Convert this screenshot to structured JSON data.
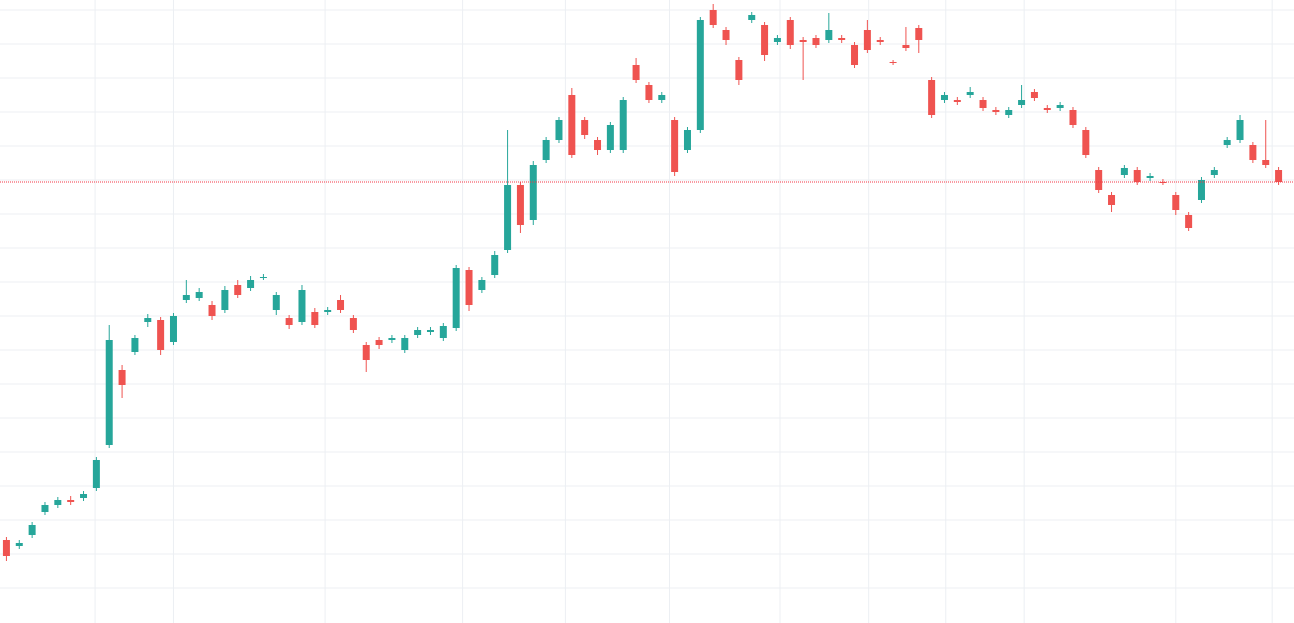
{
  "chart_data": {
    "type": "candlestick",
    "x": [
      0,
      1,
      2,
      3,
      4,
      5,
      6,
      7,
      8,
      9,
      10,
      11,
      12,
      13,
      14,
      15,
      16,
      17,
      18,
      19,
      20,
      21,
      22,
      23,
      24,
      25,
      26,
      27,
      28,
      29,
      30,
      31,
      32,
      33,
      34,
      35,
      36,
      37,
      38,
      39,
      40,
      41,
      42,
      43,
      44,
      45,
      46,
      47,
      48,
      49,
      50,
      51,
      52,
      53,
      54,
      55,
      56,
      57,
      58,
      59,
      60,
      61,
      62,
      63,
      64,
      65,
      66,
      67,
      68,
      69,
      70,
      71,
      72,
      73,
      74,
      75,
      76,
      77,
      78,
      79,
      80,
      81,
      82,
      83,
      84,
      85,
      86,
      87,
      88,
      89,
      90,
      91,
      92,
      93,
      94,
      95,
      96,
      97,
      98,
      99
    ],
    "open": [
      83,
      77,
      88,
      111,
      118,
      123,
      125,
      135,
      178,
      253,
      271,
      301,
      303,
      281,
      323,
      325,
      318,
      313,
      338,
      335,
      345,
      313,
      305,
      301,
      311,
      311,
      323,
      305,
      278,
      283,
      283,
      273,
      288,
      291,
      285,
      295,
      353,
      333,
      348,
      373,
      438,
      403,
      463,
      483,
      528,
      503,
      483,
      473,
      473,
      558,
      538,
      523,
      503,
      473,
      493,
      613,
      593,
      563,
      603,
      598,
      581,
      603,
      583,
      585,
      583,
      585,
      578,
      593,
      583,
      561,
      578,
      595,
      543,
      523,
      523,
      528,
      523,
      513,
      508,
      518,
      531,
      515,
      515,
      513,
      493,
      453,
      428,
      448,
      453,
      445,
      441,
      428,
      408,
      423,
      448,
      478,
      483,
      478,
      463,
      453
    ],
    "high": [
      86,
      83,
      101,
      121,
      126,
      127,
      132,
      166,
      298,
      258,
      288,
      309,
      306,
      310,
      343,
      335,
      322,
      337,
      343,
      347,
      349,
      331,
      308,
      338,
      315,
      316,
      328,
      308,
      281,
      286,
      288,
      288,
      296,
      296,
      300,
      358,
      356,
      346,
      372,
      493,
      441,
      462,
      486,
      506,
      535,
      506,
      486,
      501,
      526,
      565,
      541,
      531,
      506,
      496,
      606,
      619,
      596,
      566,
      611,
      601,
      588,
      606,
      586,
      588,
      610,
      588,
      581,
      603,
      586,
      563,
      596,
      598,
      546,
      531,
      526,
      536,
      526,
      516,
      516,
      538,
      534,
      518,
      521,
      516,
      496,
      456,
      431,
      458,
      456,
      450,
      444,
      431,
      411,
      446,
      456,
      486,
      508,
      481,
      503,
      456
    ],
    "low": [
      62,
      74,
      85,
      108,
      115,
      118,
      122,
      132,
      175,
      225,
      268,
      296,
      268,
      278,
      320,
      322,
      303,
      310,
      325,
      332,
      343,
      308,
      294,
      298,
      295,
      308,
      310,
      290,
      251,
      274,
      280,
      270,
      285,
      288,
      282,
      292,
      312,
      330,
      345,
      370,
      390,
      398,
      460,
      480,
      465,
      484,
      468,
      470,
      470,
      540,
      520,
      520,
      447,
      470,
      490,
      595,
      578,
      538,
      600,
      562,
      578,
      574,
      543,
      575,
      580,
      580,
      555,
      570,
      578,
      558,
      572,
      570,
      505,
      520,
      518,
      525,
      512,
      508,
      505,
      515,
      522,
      510,
      512,
      495,
      465,
      430,
      411,
      445,
      438,
      442,
      438,
      408,
      392,
      420,
      445,
      475,
      480,
      460,
      455,
      438
    ],
    "close": [
      67,
      80,
      98,
      118,
      123,
      121,
      129,
      163,
      283,
      238,
      285,
      305,
      273,
      307,
      328,
      331,
      307,
      333,
      328,
      343,
      346,
      328,
      298,
      333,
      298,
      313,
      313,
      293,
      263,
      278,
      285,
      285,
      293,
      293,
      297,
      355,
      318,
      343,
      368,
      438,
      398,
      458,
      483,
      503,
      468,
      488,
      473,
      498,
      523,
      543,
      523,
      528,
      451,
      493,
      603,
      598,
      583,
      543,
      608,
      568,
      585,
      578,
      581,
      578,
      593,
      583,
      558,
      573,
      581,
      560,
      575,
      583,
      508,
      528,
      521,
      531,
      515,
      511,
      513,
      523,
      525,
      513,
      518,
      498,
      468,
      433,
      418,
      455,
      441,
      447,
      440,
      413,
      395,
      443,
      453,
      483,
      503,
      463,
      458,
      441
    ],
    "up_color": "#26a69a",
    "down_color": "#ef5350",
    "xlim": [
      -0.5,
      100.2
    ],
    "xticks": [
      6.9,
      13.0,
      24.8,
      35.5,
      43.5,
      51.6,
      60.2,
      67.1,
      73.1,
      79.2,
      91.0,
      98.5
    ],
    "ylim": [
      0,
      623
    ],
    "yticks": [
      35,
      69,
      103,
      137,
      171,
      205,
      239,
      273,
      307,
      341,
      375,
      409,
      443,
      477,
      511,
      545,
      579,
      613
    ],
    "grid": true,
    "price_line": {
      "value": 441,
      "color": "#f23645"
    }
  }
}
